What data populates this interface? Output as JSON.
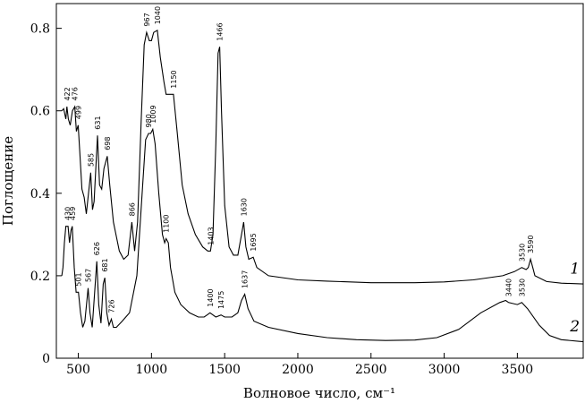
{
  "chart_data": {
    "type": "line",
    "xlabel": "Волновое число, см⁻¹",
    "ylabel": "Поглощение",
    "xlim": [
      350,
      3950
    ],
    "ylim": [
      0,
      0.86
    ],
    "xticks": [
      500,
      1000,
      1500,
      2000,
      2500,
      3000,
      3500
    ],
    "xtick_labels": [
      "500",
      "1000",
      "1500",
      "2000",
      "2500",
      "3000",
      "3500"
    ],
    "yticks": [
      0,
      0.2,
      0.4,
      0.6,
      0.8
    ],
    "ytick_labels": [
      "0",
      "0.2",
      "0.4",
      "0.6",
      "0.8"
    ],
    "grid": false,
    "series": [
      {
        "name": "1",
        "label_at": [
          3860,
          0.205
        ],
        "points": [
          [
            387,
            0.6
          ],
          [
            400,
            0.605
          ],
          [
            415,
            0.58
          ],
          [
            422,
            0.61
          ],
          [
            432,
            0.58
          ],
          [
            445,
            0.565
          ],
          [
            460,
            0.6
          ],
          [
            476,
            0.61
          ],
          [
            487,
            0.55
          ],
          [
            499,
            0.565
          ],
          [
            510,
            0.5
          ],
          [
            525,
            0.41
          ],
          [
            540,
            0.39
          ],
          [
            555,
            0.35
          ],
          [
            585,
            0.45
          ],
          [
            597,
            0.36
          ],
          [
            608,
            0.38
          ],
          [
            631,
            0.54
          ],
          [
            645,
            0.42
          ],
          [
            660,
            0.41
          ],
          [
            675,
            0.46
          ],
          [
            698,
            0.49
          ],
          [
            715,
            0.42
          ],
          [
            740,
            0.33
          ],
          [
            780,
            0.26
          ],
          [
            810,
            0.24
          ],
          [
            840,
            0.25
          ],
          [
            866,
            0.33
          ],
          [
            885,
            0.26
          ],
          [
            905,
            0.33
          ],
          [
            930,
            0.58
          ],
          [
            950,
            0.76
          ],
          [
            967,
            0.79
          ],
          [
            985,
            0.77
          ],
          [
            1000,
            0.77
          ],
          [
            1015,
            0.79
          ],
          [
            1040,
            0.795
          ],
          [
            1060,
            0.73
          ],
          [
            1085,
            0.67
          ],
          [
            1100,
            0.64
          ],
          [
            1120,
            0.64
          ],
          [
            1150,
            0.64
          ],
          [
            1175,
            0.55
          ],
          [
            1210,
            0.42
          ],
          [
            1250,
            0.35
          ],
          [
            1300,
            0.3
          ],
          [
            1350,
            0.27
          ],
          [
            1385,
            0.26
          ],
          [
            1403,
            0.26
          ],
          [
            1420,
            0.3
          ],
          [
            1440,
            0.52
          ],
          [
            1455,
            0.74
          ],
          [
            1466,
            0.755
          ],
          [
            1478,
            0.6
          ],
          [
            1500,
            0.37
          ],
          [
            1530,
            0.27
          ],
          [
            1560,
            0.25
          ],
          [
            1590,
            0.25
          ],
          [
            1615,
            0.3
          ],
          [
            1630,
            0.33
          ],
          [
            1645,
            0.27
          ],
          [
            1665,
            0.24
          ],
          [
            1695,
            0.245
          ],
          [
            1720,
            0.22
          ],
          [
            1800,
            0.2
          ],
          [
            2000,
            0.19
          ],
          [
            2200,
            0.187
          ],
          [
            2500,
            0.183
          ],
          [
            2800,
            0.183
          ],
          [
            3000,
            0.185
          ],
          [
            3200,
            0.19
          ],
          [
            3400,
            0.2
          ],
          [
            3480,
            0.21
          ],
          [
            3530,
            0.22
          ],
          [
            3560,
            0.215
          ],
          [
            3575,
            0.22
          ],
          [
            3590,
            0.24
          ],
          [
            3605,
            0.22
          ],
          [
            3620,
            0.2
          ],
          [
            3700,
            0.186
          ],
          [
            3800,
            0.182
          ],
          [
            3950,
            0.18
          ]
        ]
      },
      {
        "name": "2",
        "label_at": [
          3860,
          0.065
        ],
        "points": [
          [
            387,
            0.2
          ],
          [
            395,
            0.22
          ],
          [
            405,
            0.28
          ],
          [
            415,
            0.32
          ],
          [
            430,
            0.32
          ],
          [
            440,
            0.28
          ],
          [
            450,
            0.31
          ],
          [
            459,
            0.32
          ],
          [
            472,
            0.22
          ],
          [
            485,
            0.16
          ],
          [
            501,
            0.16
          ],
          [
            515,
            0.11
          ],
          [
            530,
            0.075
          ],
          [
            545,
            0.09
          ],
          [
            567,
            0.17
          ],
          [
            580,
            0.11
          ],
          [
            595,
            0.075
          ],
          [
            610,
            0.15
          ],
          [
            626,
            0.235
          ],
          [
            640,
            0.13
          ],
          [
            655,
            0.085
          ],
          [
            670,
            0.18
          ],
          [
            681,
            0.195
          ],
          [
            695,
            0.11
          ],
          [
            710,
            0.08
          ],
          [
            726,
            0.095
          ],
          [
            740,
            0.075
          ],
          [
            760,
            0.075
          ],
          [
            800,
            0.09
          ],
          [
            850,
            0.11
          ],
          [
            900,
            0.2
          ],
          [
            940,
            0.42
          ],
          [
            960,
            0.53
          ],
          [
            980,
            0.545
          ],
          [
            995,
            0.545
          ],
          [
            1009,
            0.555
          ],
          [
            1025,
            0.52
          ],
          [
            1050,
            0.4
          ],
          [
            1075,
            0.3
          ],
          [
            1090,
            0.28
          ],
          [
            1100,
            0.29
          ],
          [
            1115,
            0.28
          ],
          [
            1130,
            0.22
          ],
          [
            1160,
            0.16
          ],
          [
            1200,
            0.13
          ],
          [
            1260,
            0.11
          ],
          [
            1320,
            0.1
          ],
          [
            1360,
            0.1
          ],
          [
            1380,
            0.105
          ],
          [
            1400,
            0.11
          ],
          [
            1420,
            0.105
          ],
          [
            1440,
            0.1
          ],
          [
            1475,
            0.105
          ],
          [
            1500,
            0.1
          ],
          [
            1550,
            0.1
          ],
          [
            1590,
            0.11
          ],
          [
            1615,
            0.14
          ],
          [
            1637,
            0.155
          ],
          [
            1660,
            0.12
          ],
          [
            1700,
            0.09
          ],
          [
            1800,
            0.075
          ],
          [
            2000,
            0.06
          ],
          [
            2200,
            0.05
          ],
          [
            2400,
            0.045
          ],
          [
            2600,
            0.043
          ],
          [
            2800,
            0.044
          ],
          [
            2950,
            0.05
          ],
          [
            3100,
            0.07
          ],
          [
            3250,
            0.11
          ],
          [
            3380,
            0.135
          ],
          [
            3420,
            0.14
          ],
          [
            3440,
            0.135
          ],
          [
            3500,
            0.13
          ],
          [
            3530,
            0.135
          ],
          [
            3570,
            0.12
          ],
          [
            3650,
            0.08
          ],
          [
            3720,
            0.055
          ],
          [
            3800,
            0.045
          ],
          [
            3950,
            0.04
          ]
        ]
      }
    ],
    "peak_labels": [
      {
        "text": "422",
        "x": 422,
        "y": 0.62
      },
      {
        "text": "476",
        "x": 476,
        "y": 0.62
      },
      {
        "text": "499",
        "x": 499,
        "y": 0.575
      },
      {
        "text": "585",
        "x": 585,
        "y": 0.46
      },
      {
        "text": "631",
        "x": 631,
        "y": 0.55
      },
      {
        "text": "698",
        "x": 698,
        "y": 0.5
      },
      {
        "text": "866",
        "x": 866,
        "y": 0.34
      },
      {
        "text": "967",
        "x": 967,
        "y": 0.8
      },
      {
        "text": "1040",
        "x": 1040,
        "y": 0.805
      },
      {
        "text": "1150",
        "x": 1150,
        "y": 0.65
      },
      {
        "text": "1403",
        "x": 1403,
        "y": 0.27
      },
      {
        "text": "1466",
        "x": 1466,
        "y": 0.765
      },
      {
        "text": "1630",
        "x": 1630,
        "y": 0.34
      },
      {
        "text": "1695",
        "x": 1695,
        "y": 0.255
      },
      {
        "text": "3530",
        "x": 3530,
        "y": 0.23
      },
      {
        "text": "3590",
        "x": 3590,
        "y": 0.25
      },
      {
        "text": "430",
        "x": 425,
        "y": 0.33
      },
      {
        "text": "459",
        "x": 459,
        "y": 0.33
      },
      {
        "text": "501",
        "x": 501,
        "y": 0.17
      },
      {
        "text": "567",
        "x": 567,
        "y": 0.18
      },
      {
        "text": "626",
        "x": 626,
        "y": 0.245
      },
      {
        "text": "681",
        "x": 681,
        "y": 0.205
      },
      {
        "text": "726",
        "x": 726,
        "y": 0.105
      },
      {
        "text": "980",
        "x": 980,
        "y": 0.555
      },
      {
        "text": "1009",
        "x": 1009,
        "y": 0.565
      },
      {
        "text": "1100",
        "x": 1100,
        "y": 0.3
      },
      {
        "text": "1400",
        "x": 1400,
        "y": 0.12
      },
      {
        "text": "1475",
        "x": 1475,
        "y": 0.115
      },
      {
        "text": "1637",
        "x": 1637,
        "y": 0.165
      },
      {
        "text": "3440",
        "x": 3440,
        "y": 0.145
      },
      {
        "text": "3530",
        "x": 3530,
        "y": 0.145
      }
    ]
  }
}
